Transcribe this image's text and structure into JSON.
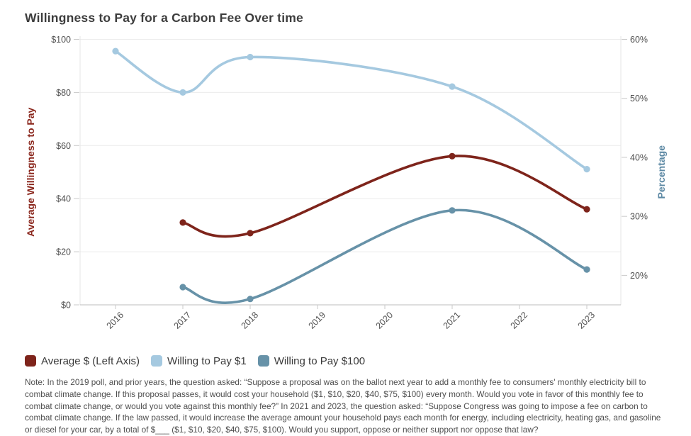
{
  "chart_data": {
    "type": "line",
    "title": "Willingness to Pay for a Carbon Fee Over time",
    "x_ticks": [
      2016,
      2017,
      2018,
      2019,
      2020,
      2021,
      2022,
      2023
    ],
    "left_axis": {
      "label": "Average Willingness to Pay",
      "label_color": "#8a261c",
      "min": 0,
      "max": 100,
      "ticks": [
        {
          "v": 0,
          "label": "$0"
        },
        {
          "v": 20,
          "label": "$20"
        },
        {
          "v": 40,
          "label": "$40"
        },
        {
          "v": 60,
          "label": "$60"
        },
        {
          "v": 80,
          "label": "$80"
        },
        {
          "v": 100,
          "label": "$100"
        }
      ]
    },
    "right_axis": {
      "label": "Percentage",
      "label_color": "#5d89a4",
      "min": 15,
      "max": 60,
      "ticks": [
        {
          "v": 20,
          "label": "20%"
        },
        {
          "v": 30,
          "label": "30%"
        },
        {
          "v": 40,
          "label": "40%"
        },
        {
          "v": 50,
          "label": "50%"
        },
        {
          "v": 60,
          "label": "60%"
        }
      ]
    },
    "series": [
      {
        "name": "Average $ (Left Axis)",
        "axis": "left",
        "color": "#7e241b",
        "x": [
          2017,
          2018,
          2021,
          2023
        ],
        "values": [
          31,
          27,
          56,
          36
        ]
      },
      {
        "name": "Willing to Pay $1",
        "axis": "right",
        "color": "#a5c9e0",
        "x": [
          2016,
          2017,
          2018,
          2021,
          2023
        ],
        "values": [
          58,
          51,
          57,
          52,
          38
        ]
      },
      {
        "name": "Willing to Pay $100",
        "axis": "right",
        "color": "#6792a8",
        "x": [
          2017,
          2018,
          2021,
          2023
        ],
        "values": [
          18,
          16,
          31,
          21
        ]
      }
    ],
    "grid": true,
    "legend_position": "bottom-left"
  },
  "note": "Note: In the 2019 poll, and prior years, the question asked: “Suppose a proposal was on the ballot next year to add a monthly fee to consumers' monthly electricity bill to combat climate change. If this proposal passes, it would cost your household ($1, $10, $20, $40, $75, $100) every month. Would you vote in favor of this monthly fee to combat climate change, or would you vote against this monthly fee?” In 2021 and 2023, the question asked: “Suppose Congress was going to impose a fee on carbon to combat climate change. If the law passed, it would increase the average amount your household pays each month for energy, including electricity, heating gas, and gasoline or diesel for your car, by a total of $___ ($1, $10, $20, $40, $75, $100). Would you support, oppose or neither support nor oppose that law?"
}
